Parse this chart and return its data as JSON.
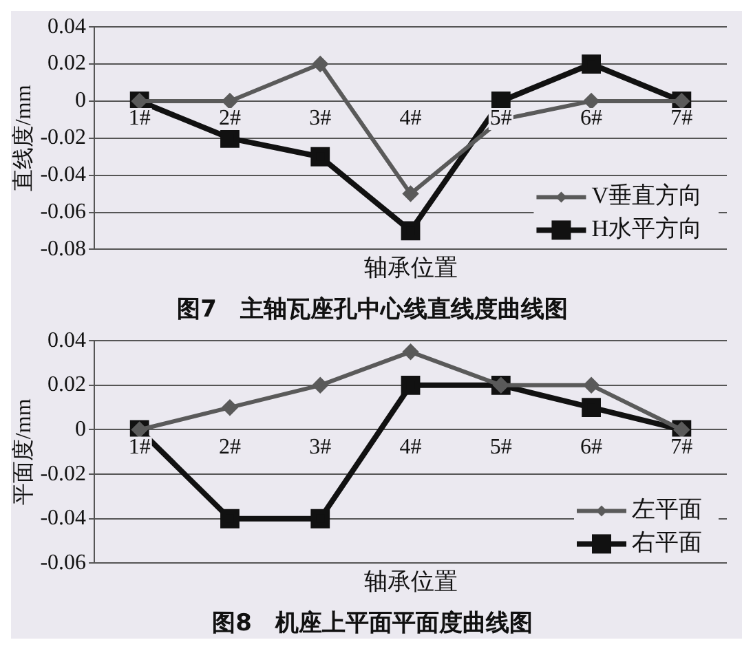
{
  "chart_data": [
    {
      "type": "line",
      "title": "图7　主轴瓦座孔中心线直线度曲线图",
      "xlabel": "轴承位置",
      "ylabel": "直线度/mm",
      "categories": [
        "1#",
        "2#",
        "3#",
        "4#",
        "5#",
        "6#",
        "7#"
      ],
      "ylim": [
        -0.08,
        0.04
      ],
      "yticks": [
        -0.08,
        -0.06,
        -0.04,
        -0.02,
        0,
        0.02,
        0.04
      ],
      "grid": "y",
      "legend": "bottom right",
      "series": [
        {
          "name": "V垂直方向",
          "color": "#5a5a5a",
          "marker": "diamond",
          "values": [
            0,
            0,
            0.02,
            -0.05,
            -0.01,
            0,
            0
          ]
        },
        {
          "name": "H水平方向",
          "color": "#111111",
          "marker": "square",
          "values": [
            0,
            -0.02,
            -0.03,
            -0.07,
            0,
            0.02,
            0
          ]
        }
      ]
    },
    {
      "type": "line",
      "title": "图8　机座上平面平面度曲线图",
      "xlabel": "轴承位置",
      "ylabel": "平面度/mm",
      "categories": [
        "1#",
        "2#",
        "3#",
        "4#",
        "5#",
        "6#",
        "7#"
      ],
      "ylim": [
        -0.06,
        0.04
      ],
      "yticks": [
        -0.06,
        -0.04,
        -0.02,
        0,
        0.02,
        0.04
      ],
      "grid": "y",
      "legend": "bottom right",
      "series": [
        {
          "name": "左平面",
          "color": "#5a5a5a",
          "marker": "diamond",
          "values": [
            0,
            0.01,
            0.02,
            0.035,
            0.02,
            0.02,
            0
          ]
        },
        {
          "name": "右平面",
          "color": "#111111",
          "marker": "square",
          "values": [
            0,
            -0.04,
            -0.04,
            0.02,
            0.02,
            0.01,
            0
          ]
        }
      ]
    }
  ]
}
